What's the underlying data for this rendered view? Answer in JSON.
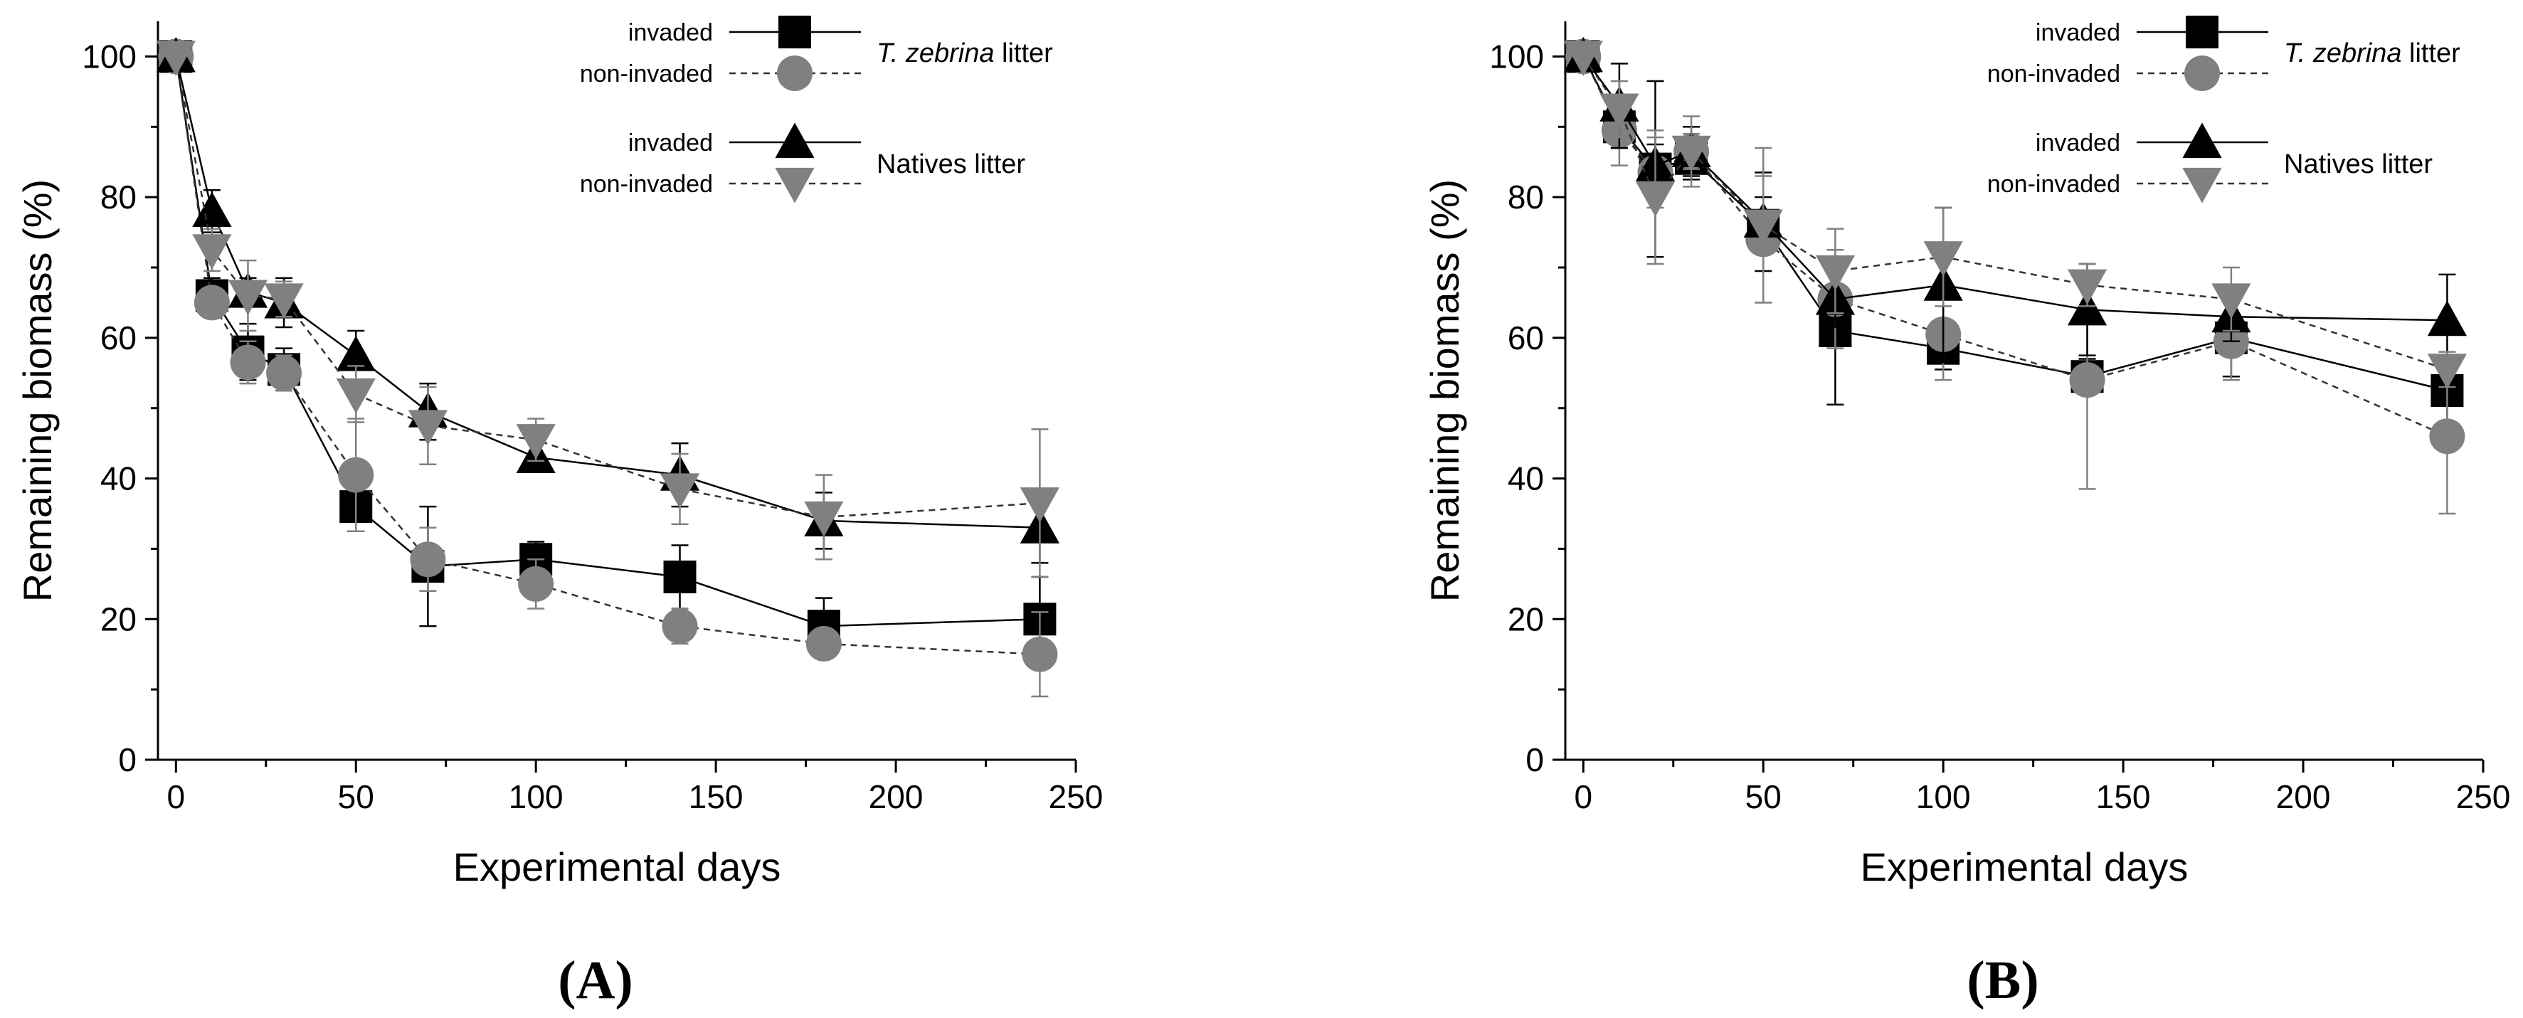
{
  "chart_data": [
    {
      "type": "line",
      "panel_label": "(A)",
      "xlabel": "Experimental days",
      "ylabel": "Remaining biomass (%)",
      "xlim": [
        -5,
        250
      ],
      "ylim": [
        0,
        105
      ],
      "xticks": [
        0,
        50,
        100,
        150,
        200,
        250
      ],
      "yticks": [
        0,
        20,
        40,
        60,
        80,
        100
      ],
      "x": [
        0,
        10,
        20,
        30,
        50,
        70,
        100,
        140,
        180,
        240
      ],
      "legend_groups": [
        "T. zebrina litter",
        "Natives litter"
      ],
      "series": [
        {
          "name": "invaded",
          "group": "T. zebrina litter",
          "marker": "square",
          "color": "#000000",
          "dash": "solid",
          "values": [
            100,
            66,
            58,
            55.5,
            36,
            27.5,
            28.5,
            26,
            19,
            20
          ],
          "errors": [
            0,
            2.5,
            4,
            3,
            3.5,
            8.5,
            2.5,
            4.5,
            4,
            6
          ]
        },
        {
          "name": "non-invaded",
          "group": "T. zebrina litter",
          "marker": "circle",
          "color": "#808080",
          "dash": "dashed",
          "values": [
            100,
            65,
            56.5,
            55,
            40.5,
            28.5,
            25,
            19,
            16.5,
            15
          ],
          "errors": [
            0,
            1.5,
            3,
            2.5,
            8,
            4.5,
            3.5,
            2.5,
            2,
            6
          ]
        },
        {
          "name": "invaded",
          "group": "Natives litter",
          "marker": "triangle-up",
          "color": "#000000",
          "dash": "solid",
          "values": [
            100,
            78,
            66.5,
            65,
            57.5,
            49.5,
            43,
            40.5,
            34,
            33
          ],
          "errors": [
            0,
            3,
            2,
            3.5,
            3.5,
            4,
            2,
            4.5,
            4,
            5
          ]
        },
        {
          "name": "non-invaded",
          "group": "Natives litter",
          "marker": "triangle-down",
          "color": "#808080",
          "dash": "dashed",
          "values": [
            100,
            72.5,
            66,
            65.5,
            52,
            47.5,
            45.5,
            38.5,
            34.5,
            36.5
          ],
          "errors": [
            0,
            3,
            5,
            2.5,
            4,
            5.5,
            3,
            5,
            6,
            10.5
          ]
        }
      ]
    },
    {
      "type": "line",
      "panel_label": "(B)",
      "xlabel": "Experimental days",
      "ylabel": "Remaining biomass (%)",
      "xlim": [
        -5,
        250
      ],
      "ylim": [
        0,
        105
      ],
      "xticks": [
        0,
        50,
        100,
        150,
        200,
        250
      ],
      "yticks": [
        0,
        20,
        40,
        60,
        80,
        100
      ],
      "x": [
        0,
        10,
        20,
        30,
        50,
        70,
        100,
        140,
        180,
        240
      ],
      "legend_groups": [
        "T. zebrina litter",
        "Natives litter"
      ],
      "series": [
        {
          "name": "invaded",
          "group": "T. zebrina litter",
          "marker": "square",
          "color": "#000000",
          "dash": "solid",
          "values": [
            100,
            90,
            84,
            85.5,
            76,
            61,
            58.5,
            54.5,
            60,
            52.5
          ],
          "errors": [
            0,
            3,
            12.5,
            3,
            4,
            10.5,
            3,
            2.5,
            5.5,
            5
          ]
        },
        {
          "name": "non-invaded",
          "group": "T. zebrina litter",
          "marker": "circle",
          "color": "#808080",
          "dash": "dashed",
          "values": [
            100,
            89.5,
            83.5,
            86.5,
            74,
            65.5,
            60.5,
            54,
            59.5,
            46
          ],
          "errors": [
            0,
            5,
            5,
            2.5,
            9,
            7,
            6.5,
            15.5,
            5.5,
            11
          ]
        },
        {
          "name": "invaded",
          "group": "Natives litter",
          "marker": "triangle-up",
          "color": "#000000",
          "dash": "solid",
          "values": [
            100,
            93,
            84.5,
            86.5,
            76.5,
            65.5,
            67.5,
            64,
            63,
            62.5
          ],
          "errors": [
            0,
            6,
            3,
            3.5,
            7,
            4,
            11,
            6.5,
            3.5,
            6.5
          ]
        },
        {
          "name": "non-invaded",
          "group": "Natives litter",
          "marker": "triangle-down",
          "color": "#808080",
          "dash": "dashed",
          "values": [
            100,
            92.5,
            80,
            86.5,
            76,
            69.5,
            71.5,
            67.5,
            65.5,
            55.5
          ],
          "errors": [
            0,
            4,
            9.5,
            5,
            11,
            6,
            7,
            3,
            4.5,
            2.5
          ]
        }
      ]
    }
  ],
  "legend": {
    "invaded_label": "invaded",
    "non_invaded_label": "non-invaded",
    "group1_prefix": "T. zebrina",
    "group1_suffix": " litter",
    "group2": "Natives litter"
  }
}
